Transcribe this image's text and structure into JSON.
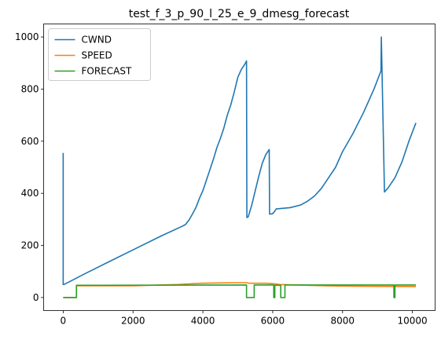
{
  "chart_data": {
    "type": "line",
    "title": "test_f_3_p_90_l_25_e_9_dmesg_forecast",
    "xlabel": "",
    "ylabel": "",
    "xlim": [
      -560,
      10650
    ],
    "ylim": [
      -50,
      1050
    ],
    "xticks": [
      0,
      2000,
      4000,
      6000,
      8000,
      10000
    ],
    "yticks": [
      0,
      200,
      400,
      600,
      800,
      1000
    ],
    "grid": false,
    "legend_position": "top-left",
    "series": [
      {
        "name": "CWND",
        "color": "#1f77b4",
        "x": [
          0,
          0,
          20,
          200,
          600,
          1200,
          2000,
          2800,
          3400,
          3500,
          3600,
          3700,
          3800,
          3900,
          4000,
          4100,
          4200,
          4300,
          4400,
          4500,
          4600,
          4700,
          4800,
          4900,
          5000,
          5100,
          5200,
          5250,
          5260,
          5300,
          5400,
          5500,
          5600,
          5700,
          5800,
          5900,
          5910,
          6000,
          6050,
          6100,
          6500,
          6800,
          7000,
          7200,
          7400,
          7600,
          7800,
          8000,
          8300,
          8600,
          8900,
          9100,
          9110,
          9200,
          9300,
          9500,
          9700,
          9900,
          10100
        ],
        "y": [
          555,
          50,
          50,
          62,
          90,
          130,
          183,
          236,
          273,
          280,
          297,
          320,
          345,
          380,
          410,
          450,
          490,
          530,
          575,
          610,
          650,
          700,
          740,
          790,
          845,
          875,
          895,
          908,
          307,
          310,
          355,
          410,
          465,
          515,
          548,
          568,
          320,
          322,
          330,
          340,
          345,
          355,
          370,
          390,
          420,
          460,
          500,
          560,
          630,
          710,
          800,
          870,
          1000,
          405,
          420,
          460,
          520,
          600,
          670
        ]
      },
      {
        "name": "SPEED",
        "color": "#ff7f0e",
        "x": [
          0,
          380,
          380,
          2000,
          2500,
          3300,
          3700,
          4000,
          4500,
          5000,
          5250,
          5300,
          5800,
          6000,
          6100,
          6200,
          7000,
          7500,
          8000,
          9000,
          10100
        ],
        "y": [
          0,
          0,
          45,
          45,
          47,
          50,
          53,
          55,
          56,
          57,
          57,
          55,
          55,
          53,
          52,
          50,
          47,
          45,
          44,
          43,
          42
        ]
      },
      {
        "name": "FORECAST",
        "color": "#2ca02c",
        "x": [
          0,
          380,
          380,
          5250,
          5250,
          5470,
          5470,
          6030,
          6030,
          6060,
          6060,
          6230,
          6230,
          6350,
          6350,
          9470,
          9470,
          9500,
          9500,
          10100
        ],
        "y": [
          0,
          0,
          47,
          48,
          0,
          0,
          48,
          48,
          0,
          0,
          47,
          47,
          0,
          0,
          48,
          48,
          0,
          0,
          48,
          48
        ]
      }
    ]
  }
}
